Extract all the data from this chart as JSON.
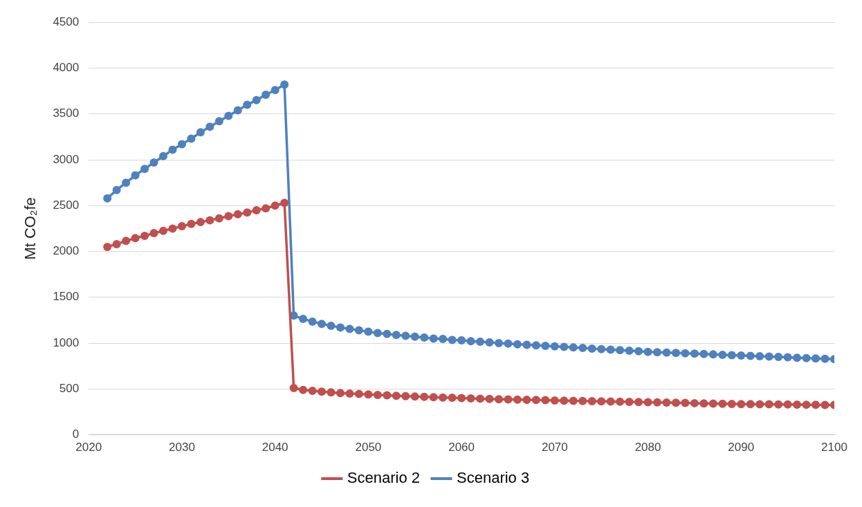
{
  "chart_data": {
    "type": "line",
    "ylabel": "Mt CO₂fe",
    "x": [
      2022,
      2023,
      2024,
      2025,
      2026,
      2027,
      2028,
      2029,
      2030,
      2031,
      2032,
      2033,
      2034,
      2035,
      2036,
      2037,
      2038,
      2039,
      2040,
      2041,
      2042,
      2043,
      2044,
      2045,
      2046,
      2047,
      2048,
      2049,
      2050,
      2051,
      2052,
      2053,
      2054,
      2055,
      2056,
      2057,
      2058,
      2059,
      2060,
      2061,
      2062,
      2063,
      2064,
      2065,
      2066,
      2067,
      2068,
      2069,
      2070,
      2071,
      2072,
      2073,
      2074,
      2075,
      2076,
      2077,
      2078,
      2079,
      2080,
      2081,
      2082,
      2083,
      2084,
      2085,
      2086,
      2087,
      2088,
      2089,
      2090,
      2091,
      2092,
      2093,
      2094,
      2095,
      2096,
      2097,
      2098,
      2099,
      2100
    ],
    "series": [
      {
        "name": "Scenario 2",
        "color": "#c0504d",
        "values": [
          2050,
          2080,
          2115,
          2145,
          2170,
          2200,
          2225,
          2250,
          2275,
          2300,
          2320,
          2340,
          2360,
          2385,
          2405,
          2425,
          2450,
          2470,
          2500,
          2530,
          510,
          490,
          480,
          470,
          463,
          456,
          450,
          445,
          440,
          435,
          430,
          426,
          422,
          418,
          414,
          410,
          407,
          404,
          400,
          397,
          394,
          391,
          388,
          386,
          384,
          382,
          380,
          378,
          375,
          373,
          371,
          369,
          367,
          365,
          363,
          361,
          359,
          357,
          355,
          353,
          351,
          349,
          347,
          345,
          343,
          341,
          339,
          337,
          335,
          334,
          333,
          332,
          331,
          330,
          329,
          328,
          327,
          326,
          325
        ]
      },
      {
        "name": "Scenario 3",
        "color": "#4f81bd",
        "values": [
          2580,
          2670,
          2750,
          2830,
          2900,
          2970,
          3040,
          3110,
          3170,
          3230,
          3300,
          3360,
          3420,
          3480,
          3540,
          3600,
          3650,
          3710,
          3760,
          3820,
          1300,
          1265,
          1235,
          1210,
          1190,
          1170,
          1155,
          1140,
          1125,
          1110,
          1100,
          1090,
          1080,
          1070,
          1060,
          1050,
          1045,
          1035,
          1030,
          1022,
          1015,
          1008,
          1001,
          995,
          988,
          982,
          976,
          970,
          965,
          959,
          953,
          947,
          941,
          935,
          929,
          923,
          917,
          911,
          905,
          901,
          897,
          893,
          889,
          885,
          881,
          877,
          873,
          869,
          865,
          861,
          857,
          853,
          849,
          845,
          841,
          837,
          833,
          829,
          825
        ]
      }
    ],
    "xlim": [
      2020,
      2100
    ],
    "xticks": [
      2020,
      2030,
      2040,
      2050,
      2060,
      2070,
      2080,
      2090,
      2100
    ],
    "ylim": [
      0,
      4500
    ],
    "yticks": [
      0,
      500,
      1000,
      1500,
      2000,
      2500,
      3000,
      3500,
      4000,
      4500
    ],
    "grid": "y",
    "legend": "bottom",
    "marker": "circle",
    "line_style": "solid"
  }
}
